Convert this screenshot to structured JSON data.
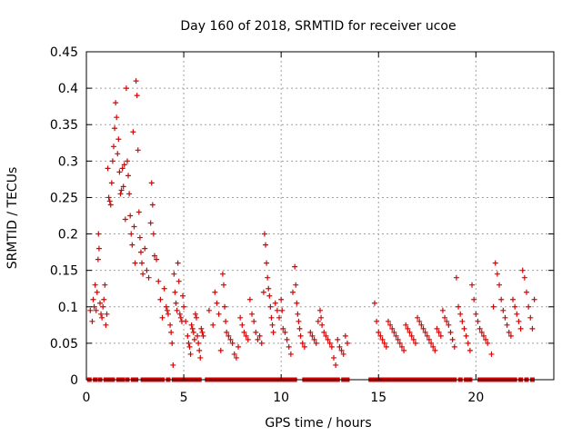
{
  "chart_data": {
    "type": "scatter",
    "title": "Day 160 of 2018, SRMTID for receiver ucoe",
    "xlabel": "GPS time / hours",
    "ylabel": "SRMTID / TECUs",
    "xlim": [
      0,
      24
    ],
    "ylim": [
      0,
      0.45
    ],
    "x_ticks": [
      0,
      5,
      10,
      15,
      20
    ],
    "x_tick_labels": [
      "0",
      "5",
      "10",
      "15",
      "20"
    ],
    "y_ticks": [
      0,
      0.05,
      0.1,
      0.15,
      0.2,
      0.25,
      0.3,
      0.35,
      0.4,
      0.45
    ],
    "y_tick_labels": [
      "0",
      "0.05",
      "0.1",
      "0.15",
      "0.2",
      "0.25",
      "0.3",
      "0.35",
      "0.4",
      "0.45"
    ],
    "grid": true,
    "marker": "plus",
    "color": "#e00000",
    "zero_markers": "square",
    "series": [
      {
        "name": "SRMTID",
        "points": [
          [
            0.2,
            0.095
          ],
          [
            0.3,
            0.08
          ],
          [
            0.35,
            0.11
          ],
          [
            0.4,
            0.1
          ],
          [
            0.45,
            0.13
          ],
          [
            0.5,
            0.095
          ],
          [
            0.55,
            0.12
          ],
          [
            0.6,
            0.165
          ],
          [
            0.62,
            0.2
          ],
          [
            0.65,
            0.18
          ],
          [
            0.7,
            0.105
          ],
          [
            0.75,
            0.09
          ],
          [
            0.8,
            0.085
          ],
          [
            0.85,
            0.1
          ],
          [
            0.9,
            0.11
          ],
          [
            0.95,
            0.13
          ],
          [
            1.0,
            0.075
          ],
          [
            1.05,
            0.09
          ],
          [
            1.1,
            0.29
          ],
          [
            1.15,
            0.25
          ],
          [
            1.2,
            0.245
          ],
          [
            1.25,
            0.24
          ],
          [
            1.3,
            0.27
          ],
          [
            1.35,
            0.3
          ],
          [
            1.4,
            0.32
          ],
          [
            1.45,
            0.345
          ],
          [
            1.5,
            0.38
          ],
          [
            1.55,
            0.36
          ],
          [
            1.6,
            0.31
          ],
          [
            1.65,
            0.33
          ],
          [
            1.7,
            0.285
          ],
          [
            1.75,
            0.255
          ],
          [
            1.8,
            0.26
          ],
          [
            1.85,
            0.29
          ],
          [
            1.9,
            0.265
          ],
          [
            1.95,
            0.295
          ],
          [
            2.0,
            0.22
          ],
          [
            2.05,
            0.4
          ],
          [
            2.1,
            0.3
          ],
          [
            2.15,
            0.28
          ],
          [
            2.2,
            0.255
          ],
          [
            2.25,
            0.225
          ],
          [
            2.3,
            0.2
          ],
          [
            2.35,
            0.185
          ],
          [
            2.4,
            0.34
          ],
          [
            2.45,
            0.21
          ],
          [
            2.5,
            0.16
          ],
          [
            2.55,
            0.41
          ],
          [
            2.6,
            0.39
          ],
          [
            2.65,
            0.315
          ],
          [
            2.7,
            0.23
          ],
          [
            2.75,
            0.195
          ],
          [
            2.8,
            0.175
          ],
          [
            2.85,
            0.16
          ],
          [
            2.9,
            0.145
          ],
          [
            3.0,
            0.18
          ],
          [
            3.1,
            0.15
          ],
          [
            3.2,
            0.14
          ],
          [
            3.3,
            0.215
          ],
          [
            3.35,
            0.27
          ],
          [
            3.4,
            0.24
          ],
          [
            3.45,
            0.2
          ],
          [
            3.5,
            0.17
          ],
          [
            3.6,
            0.165
          ],
          [
            3.7,
            0.135
          ],
          [
            3.8,
            0.11
          ],
          [
            3.9,
            0.085
          ],
          [
            4.0,
            0.125
          ],
          [
            4.1,
            0.1
          ],
          [
            4.15,
            0.095
          ],
          [
            4.2,
            0.09
          ],
          [
            4.3,
            0.075
          ],
          [
            4.35,
            0.065
          ],
          [
            4.4,
            0.05
          ],
          [
            4.45,
            0.02
          ],
          [
            4.5,
            0.145
          ],
          [
            4.55,
            0.12
          ],
          [
            4.6,
            0.105
          ],
          [
            4.65,
            0.095
          ],
          [
            4.7,
            0.16
          ],
          [
            4.75,
            0.135
          ],
          [
            4.8,
            0.09
          ],
          [
            4.85,
            0.085
          ],
          [
            4.9,
            0.08
          ],
          [
            4.95,
            0.115
          ],
          [
            5.0,
            0.1
          ],
          [
            5.1,
            0.08
          ],
          [
            5.2,
            0.06
          ],
          [
            5.25,
            0.05
          ],
          [
            5.3,
            0.045
          ],
          [
            5.35,
            0.035
          ],
          [
            5.4,
            0.075
          ],
          [
            5.45,
            0.07
          ],
          [
            5.5,
            0.065
          ],
          [
            5.55,
            0.055
          ],
          [
            5.6,
            0.09
          ],
          [
            5.65,
            0.085
          ],
          [
            5.7,
            0.06
          ],
          [
            5.75,
            0.05
          ],
          [
            5.8,
            0.04
          ],
          [
            5.85,
            0.03
          ],
          [
            5.9,
            0.07
          ],
          [
            5.95,
            0.065
          ],
          [
            6.0,
            0.06
          ],
          [
            6.3,
            0.095
          ],
          [
            6.5,
            0.075
          ],
          [
            6.6,
            0.12
          ],
          [
            6.7,
            0.105
          ],
          [
            6.8,
            0.09
          ],
          [
            6.9,
            0.04
          ],
          [
            7.0,
            0.145
          ],
          [
            7.05,
            0.13
          ],
          [
            7.1,
            0.1
          ],
          [
            7.15,
            0.08
          ],
          [
            7.2,
            0.065
          ],
          [
            7.3,
            0.06
          ],
          [
            7.4,
            0.055
          ],
          [
            7.5,
            0.05
          ],
          [
            7.6,
            0.035
          ],
          [
            7.7,
            0.03
          ],
          [
            7.8,
            0.045
          ],
          [
            7.9,
            0.085
          ],
          [
            8.0,
            0.075
          ],
          [
            8.1,
            0.065
          ],
          [
            8.2,
            0.06
          ],
          [
            8.3,
            0.055
          ],
          [
            8.4,
            0.11
          ],
          [
            8.5,
            0.09
          ],
          [
            8.6,
            0.08
          ],
          [
            8.7,
            0.065
          ],
          [
            8.8,
            0.055
          ],
          [
            8.9,
            0.06
          ],
          [
            9.0,
            0.05
          ],
          [
            9.1,
            0.12
          ],
          [
            9.15,
            0.2
          ],
          [
            9.2,
            0.185
          ],
          [
            9.25,
            0.16
          ],
          [
            9.3,
            0.14
          ],
          [
            9.35,
            0.125
          ],
          [
            9.4,
            0.115
          ],
          [
            9.45,
            0.1
          ],
          [
            9.5,
            0.085
          ],
          [
            9.55,
            0.075
          ],
          [
            9.6,
            0.065
          ],
          [
            9.7,
            0.105
          ],
          [
            9.8,
            0.095
          ],
          [
            9.9,
            0.085
          ],
          [
            10.0,
            0.11
          ],
          [
            10.05,
            0.095
          ],
          [
            10.1,
            0.07
          ],
          [
            10.2,
            0.065
          ],
          [
            10.3,
            0.055
          ],
          [
            10.4,
            0.045
          ],
          [
            10.5,
            0.035
          ],
          [
            10.6,
            0.12
          ],
          [
            10.7,
            0.155
          ],
          [
            10.75,
            0.13
          ],
          [
            10.8,
            0.105
          ],
          [
            10.85,
            0.09
          ],
          [
            10.9,
            0.08
          ],
          [
            10.95,
            0.07
          ],
          [
            11.0,
            0.06
          ],
          [
            11.1,
            0.05
          ],
          [
            11.2,
            0.045
          ],
          [
            11.5,
            0.065
          ],
          [
            11.6,
            0.06
          ],
          [
            11.7,
            0.055
          ],
          [
            11.8,
            0.05
          ],
          [
            11.9,
            0.08
          ],
          [
            12.0,
            0.095
          ],
          [
            12.05,
            0.085
          ],
          [
            12.1,
            0.075
          ],
          [
            12.2,
            0.065
          ],
          [
            12.3,
            0.06
          ],
          [
            12.4,
            0.055
          ],
          [
            12.5,
            0.05
          ],
          [
            12.6,
            0.045
          ],
          [
            12.7,
            0.03
          ],
          [
            12.8,
            0.02
          ],
          [
            12.9,
            0.055
          ],
          [
            13.0,
            0.045
          ],
          [
            13.1,
            0.04
          ],
          [
            13.2,
            0.035
          ],
          [
            13.3,
            0.06
          ],
          [
            13.4,
            0.05
          ],
          [
            14.8,
            0.105
          ],
          [
            14.9,
            0.08
          ],
          [
            15.0,
            0.065
          ],
          [
            15.1,
            0.06
          ],
          [
            15.2,
            0.055
          ],
          [
            15.3,
            0.05
          ],
          [
            15.4,
            0.045
          ],
          [
            15.5,
            0.08
          ],
          [
            15.6,
            0.075
          ],
          [
            15.7,
            0.07
          ],
          [
            15.8,
            0.065
          ],
          [
            15.9,
            0.06
          ],
          [
            16.0,
            0.055
          ],
          [
            16.1,
            0.05
          ],
          [
            16.2,
            0.045
          ],
          [
            16.3,
            0.04
          ],
          [
            16.4,
            0.075
          ],
          [
            16.5,
            0.07
          ],
          [
            16.6,
            0.065
          ],
          [
            16.7,
            0.06
          ],
          [
            16.8,
            0.055
          ],
          [
            16.9,
            0.05
          ],
          [
            17.0,
            0.085
          ],
          [
            17.1,
            0.08
          ],
          [
            17.2,
            0.075
          ],
          [
            17.3,
            0.07
          ],
          [
            17.4,
            0.065
          ],
          [
            17.5,
            0.06
          ],
          [
            17.6,
            0.055
          ],
          [
            17.7,
            0.05
          ],
          [
            17.8,
            0.045
          ],
          [
            17.9,
            0.04
          ],
          [
            18.0,
            0.07
          ],
          [
            18.1,
            0.065
          ],
          [
            18.2,
            0.06
          ],
          [
            18.3,
            0.095
          ],
          [
            18.4,
            0.085
          ],
          [
            18.5,
            0.08
          ],
          [
            18.6,
            0.075
          ],
          [
            18.7,
            0.065
          ],
          [
            18.8,
            0.055
          ],
          [
            18.9,
            0.045
          ],
          [
            19.0,
            0.14
          ],
          [
            19.1,
            0.1
          ],
          [
            19.2,
            0.09
          ],
          [
            19.3,
            0.08
          ],
          [
            19.4,
            0.07
          ],
          [
            19.5,
            0.06
          ],
          [
            19.6,
            0.05
          ],
          [
            19.7,
            0.04
          ],
          [
            19.8,
            0.13
          ],
          [
            19.9,
            0.11
          ],
          [
            20.0,
            0.09
          ],
          [
            20.1,
            0.08
          ],
          [
            20.2,
            0.07
          ],
          [
            20.3,
            0.065
          ],
          [
            20.4,
            0.06
          ],
          [
            20.5,
            0.055
          ],
          [
            20.6,
            0.05
          ],
          [
            20.8,
            0.035
          ],
          [
            20.9,
            0.1
          ],
          [
            21.0,
            0.16
          ],
          [
            21.1,
            0.145
          ],
          [
            21.2,
            0.13
          ],
          [
            21.3,
            0.11
          ],
          [
            21.4,
            0.095
          ],
          [
            21.5,
            0.085
          ],
          [
            21.6,
            0.075
          ],
          [
            21.7,
            0.065
          ],
          [
            21.8,
            0.06
          ],
          [
            21.9,
            0.11
          ],
          [
            22.0,
            0.1
          ],
          [
            22.1,
            0.09
          ],
          [
            22.2,
            0.08
          ],
          [
            22.3,
            0.07
          ],
          [
            22.4,
            0.15
          ],
          [
            22.5,
            0.14
          ],
          [
            22.6,
            0.12
          ],
          [
            22.7,
            0.1
          ],
          [
            22.8,
            0.085
          ],
          [
            22.9,
            0.07
          ],
          [
            23.0,
            0.11
          ]
        ]
      },
      {
        "name": "zero",
        "x": [
          0.15,
          0.45,
          0.7,
          1.0,
          1.2,
          1.35,
          1.65,
          1.85,
          2.1,
          2.4,
          2.55,
          2.9,
          3.1,
          3.3,
          3.5,
          3.7,
          3.9,
          4.2,
          4.5,
          4.7,
          4.9,
          5.0,
          5.2,
          5.4,
          5.6,
          5.8,
          6.2,
          6.3,
          6.4,
          6.5,
          6.6,
          6.8,
          7.0,
          7.2,
          7.4,
          7.6,
          7.8,
          8.0,
          8.2,
          8.4,
          8.6,
          8.8,
          9.0,
          9.2,
          9.4,
          9.6,
          9.7,
          9.9,
          10.1,
          10.3,
          10.5,
          10.7,
          11.2,
          11.4,
          11.6,
          11.8,
          12.0,
          12.2,
          12.3,
          12.5,
          12.7,
          12.9,
          13.2,
          13.4,
          14.6,
          14.8,
          15.0,
          15.2,
          15.4,
          15.6,
          15.8,
          16.0,
          16.2,
          16.4,
          16.6,
          16.8,
          17.0,
          17.2,
          17.4,
          17.6,
          17.8,
          18.0,
          18.2,
          18.4,
          18.5,
          18.7,
          18.9,
          19.2,
          19.5,
          19.7,
          20.2,
          20.4,
          20.6,
          20.8,
          21.0,
          21.1,
          21.3,
          21.5,
          21.7,
          21.8,
          22.0,
          22.3,
          22.6,
          22.9
        ]
      }
    ]
  }
}
